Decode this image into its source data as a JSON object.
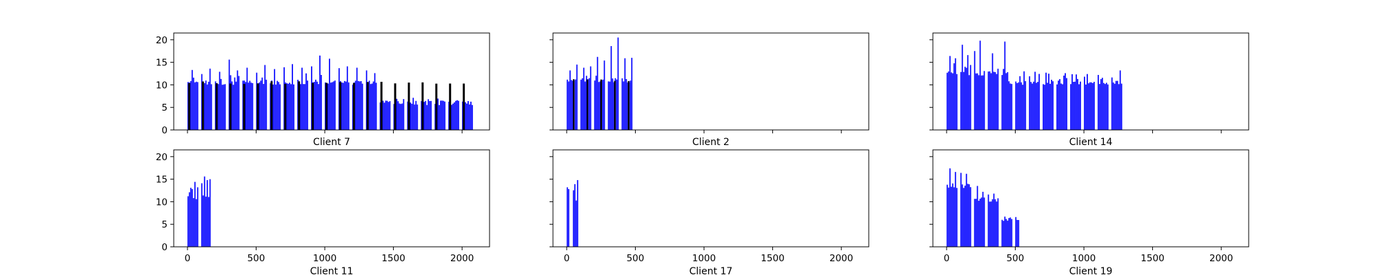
{
  "chart_data": [
    {
      "type": "bar",
      "title": "Client 7",
      "xlim": [
        -100,
        2200
      ],
      "ylim": [
        0,
        21.5
      ],
      "xticks": [
        0,
        500,
        1000,
        1500,
        2000
      ],
      "yticks": [
        0,
        5,
        10,
        15,
        20
      ],
      "show_xtick_labels": false,
      "series": [
        {
          "color": "#0000ff",
          "segments": [
            {
              "x0": 0,
              "x1": 1400,
              "base": 10.5,
              "spikes": [
                13.3,
                12.4,
                13.6,
                12.9,
                15.6,
                13.2,
                13.8,
                12.7,
                14.4,
                13.5,
                13.9,
                14.6,
                13.8,
                14.1,
                16.5,
                15.8,
                13.7,
                14.1,
                13.8,
                13.2,
                12.6
              ]
            },
            {
              "x0": 1400,
              "x1": 2090,
              "base": 6.0,
              "spikes": [
                6.5,
                6.9,
                6.6,
                6.4,
                6.5,
                6.3,
                6.6,
                6.4
              ]
            }
          ]
        },
        {
          "color": "#000000",
          "segments": [
            {
              "x0": 0,
              "x1": 2090,
              "base": 10.5,
              "period": 100,
              "width": 15
            }
          ]
        }
      ]
    },
    {
      "type": "bar",
      "title": "Client 2",
      "xlim": [
        -100,
        2200
      ],
      "ylim": [
        0,
        21.5
      ],
      "xticks": [
        0,
        500,
        1000,
        1500,
        2000
      ],
      "yticks": [
        0,
        5,
        10,
        15,
        20
      ],
      "show_xtick_labels": false,
      "series": [
        {
          "color": "#0000ff",
          "segments": [
            {
              "x0": 0,
              "x1": 500,
              "base": 11.0,
              "spikes": [
                13.2,
                14.5,
                13.8,
                14.1,
                16.2,
                15.4,
                18.6,
                20.5,
                15.9,
                16.0
              ]
            }
          ]
        },
        {
          "color": "#000000",
          "segments": [
            {
              "x0": 40,
              "x1": 500,
              "base": 11.0,
              "period": 100,
              "width": 12
            }
          ]
        }
      ]
    },
    {
      "type": "bar",
      "title": "Client 14",
      "xlim": [
        -100,
        2200
      ],
      "ylim": [
        0,
        21.5
      ],
      "xticks": [
        0,
        500,
        1000,
        1500,
        2000
      ],
      "yticks": [
        0,
        5,
        10,
        15,
        20
      ],
      "show_xtick_labels": false,
      "series": [
        {
          "color": "#0000ff",
          "segments": [
            {
              "x0": 0,
              "x1": 450,
              "base": 12.5,
              "spikes": [
                16.4,
                15.9,
                18.9,
                16.6,
                17.5,
                19.8,
                18.2,
                17.0,
                20.1,
                19.6
              ]
            },
            {
              "x0": 450,
              "x1": 1300,
              "base": 10.5,
              "spikes": [
                13.4,
                13.0,
                12.9,
                12.7,
                11.8,
                11.5,
                11.3,
                12.4,
                12.2,
                12.6,
                13.2
              ]
            }
          ]
        }
      ]
    },
    {
      "type": "bar",
      "title": "Client 11",
      "xlim": [
        -100,
        2200
      ],
      "ylim": [
        0,
        21.5
      ],
      "xticks": [
        0,
        500,
        1000,
        1500,
        2000
      ],
      "yticks": [
        0,
        5,
        10,
        15,
        20
      ],
      "show_xtick_labels": true,
      "series": [
        {
          "color": "#0000ff",
          "segments": [
            {
              "x0": 0,
              "x1": 80,
              "base": 11.0,
              "spikes": [
                12.1,
                12.8,
                14.4,
                13.2
              ]
            },
            {
              "x0": 100,
              "x1": 165,
              "base": 11.5,
              "spikes": [
                14.1,
                15.6,
                14.8,
                15.0
              ]
            }
          ]
        }
      ]
    },
    {
      "type": "bar",
      "title": "Client 17",
      "xlim": [
        -100,
        2200
      ],
      "ylim": [
        0,
        21.5
      ],
      "xticks": [
        0,
        500,
        1000,
        1500,
        2000
      ],
      "yticks": [
        0,
        5,
        10,
        15,
        20
      ],
      "show_xtick_labels": true,
      "series": [
        {
          "color": "#0000ff",
          "segments": [
            {
              "x0": 0,
              "x1": 20,
              "base": 11.5,
              "spikes": [
                13.2,
                12.8
              ]
            },
            {
              "x0": 45,
              "x1": 80,
              "base": 10.5,
              "spikes": [
                13.9,
                14.8
              ]
            }
          ]
        }
      ]
    },
    {
      "type": "bar",
      "title": "Client 19",
      "xlim": [
        -100,
        2200
      ],
      "ylim": [
        0,
        21.5
      ],
      "xticks": [
        0,
        500,
        1000,
        1500,
        2000
      ],
      "yticks": [
        0,
        5,
        10,
        15,
        20
      ],
      "show_xtick_labels": true,
      "series": [
        {
          "color": "#0000ff",
          "segments": [
            {
              "x0": 0,
              "x1": 200,
              "base": 13.5,
              "spikes": [
                17.4,
                16.6,
                16.4,
                16.2,
                16.8
              ]
            },
            {
              "x0": 200,
              "x1": 400,
              "base": 10.5,
              "spikes": [
                13.5,
                12.2,
                11.6,
                11.8,
                11.4
              ]
            },
            {
              "x0": 400,
              "x1": 530,
              "base": 6.0,
              "spikes": [
                6.7,
                6.5,
                6.6
              ]
            }
          ]
        }
      ]
    }
  ]
}
